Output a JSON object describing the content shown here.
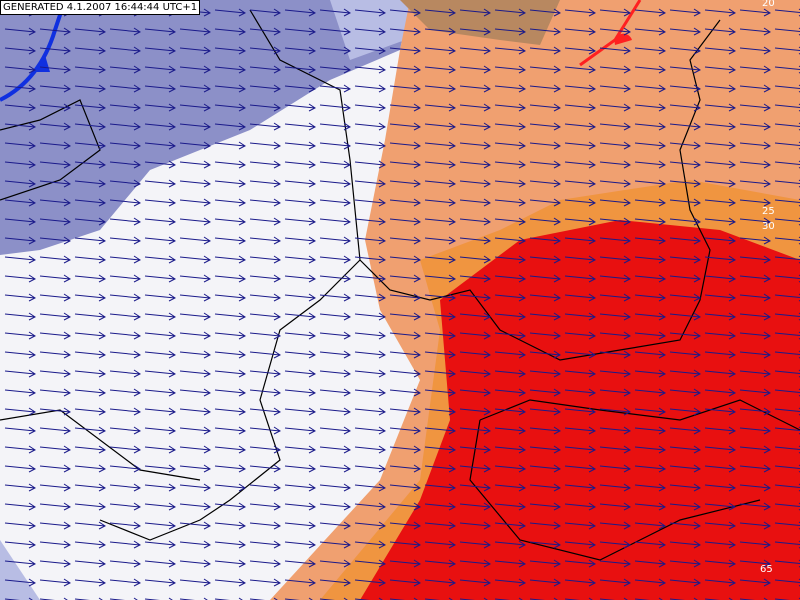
{
  "header": {
    "timestamp": "GENERATED 4.1.2007 16:44:44 UTC+1"
  },
  "contour_labels": [
    "20",
    "25",
    "30",
    "65"
  ]
}
